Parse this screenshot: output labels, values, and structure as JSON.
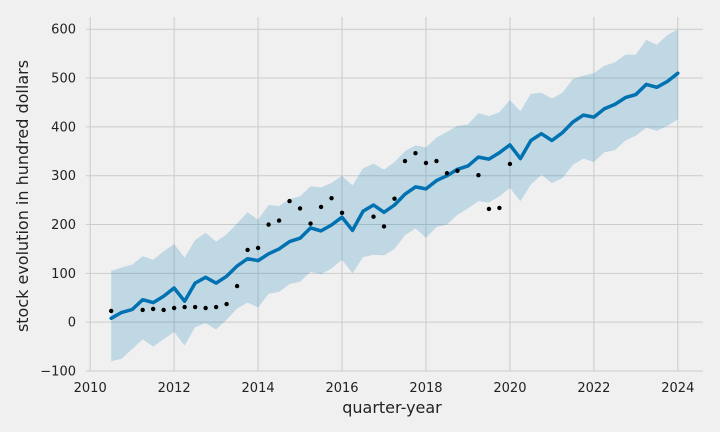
{
  "chart_data": {
    "type": "line",
    "title": "",
    "xlabel": "quarter-year",
    "ylabel": "stock evolution in hundred dollars",
    "xlim": [
      2009.9,
      2024.6
    ],
    "ylim": [
      -100,
      625
    ],
    "grid": true,
    "legend": "none",
    "x_ticks": [
      2010,
      2012,
      2014,
      2016,
      2018,
      2020,
      2022,
      2024
    ],
    "x_tick_labels": [
      "2010",
      "2012",
      "2014",
      "2016",
      "2018",
      "2020",
      "2022",
      "2024"
    ],
    "y_ticks": [
      -100,
      0,
      100,
      200,
      300,
      400,
      500,
      600
    ],
    "y_tick_labels": [
      "−100",
      "0",
      "100",
      "200",
      "300",
      "400",
      "500",
      "600"
    ],
    "colors": {
      "background": "#f0f0f0",
      "grid": "#cbcbcb",
      "forecast_line": "#0072b2",
      "band_fill": "#0072b2",
      "band_opacity": 0.2,
      "observed_points": "#000000"
    },
    "series": [
      {
        "role": "forecast",
        "x": [
          2010.5,
          2010.75,
          2011.0,
          2011.25,
          2011.5,
          2011.75,
          2012.0,
          2012.25,
          2012.5,
          2012.75,
          2013.0,
          2013.25,
          2013.5,
          2013.75,
          2014.0,
          2014.25,
          2014.5,
          2014.75,
          2015.0,
          2015.25,
          2015.5,
          2015.75,
          2016.0,
          2016.25,
          2016.5,
          2016.75,
          2017.0,
          2017.25,
          2017.5,
          2017.75,
          2018.0,
          2018.25,
          2018.5,
          2018.75,
          2019.0,
          2019.25,
          2019.5,
          2019.75,
          2020.0,
          2020.25,
          2020.5,
          2020.75,
          2021.0,
          2021.25,
          2021.5,
          2021.75,
          2022.0,
          2022.25,
          2022.5,
          2022.75,
          2023.0,
          2023.25,
          2023.5,
          2023.75,
          2024.0
        ],
        "y": [
          8,
          20,
          26,
          46,
          40,
          53,
          70,
          43,
          80,
          92,
          80,
          94,
          115,
          130,
          126,
          140,
          150,
          165,
          172,
          193,
          187,
          199,
          215,
          188,
          227,
          240,
          225,
          240,
          262,
          277,
          273,
          290,
          300,
          313,
          320,
          338,
          334,
          347,
          363,
          335,
          372,
          386,
          372,
          388,
          410,
          424,
          420,
          437,
          446,
          460,
          466,
          487,
          481,
          493,
          510
        ]
      },
      {
        "role": "uncertainty-upper",
        "x": [
          2010.5,
          2010.75,
          2011.0,
          2011.25,
          2011.5,
          2011.75,
          2012.0,
          2012.25,
          2012.5,
          2012.75,
          2013.0,
          2013.25,
          2013.5,
          2013.75,
          2014.0,
          2014.25,
          2014.5,
          2014.75,
          2015.0,
          2015.25,
          2015.5,
          2015.75,
          2016.0,
          2016.25,
          2016.5,
          2016.75,
          2017.0,
          2017.25,
          2017.5,
          2017.75,
          2018.0,
          2018.25,
          2018.5,
          2018.75,
          2019.0,
          2019.25,
          2019.5,
          2019.75,
          2020.0,
          2020.25,
          2020.5,
          2020.75,
          2021.0,
          2021.25,
          2021.5,
          2021.75,
          2022.0,
          2022.25,
          2022.5,
          2022.75,
          2023.0,
          2023.25,
          2023.5,
          2023.75,
          2024.0
        ],
        "y": [
          105,
          112,
          118,
          135,
          128,
          145,
          160,
          132,
          168,
          183,
          165,
          180,
          202,
          225,
          210,
          240,
          238,
          252,
          258,
          278,
          276,
          285,
          300,
          280,
          315,
          325,
          312,
          328,
          350,
          362,
          358,
          378,
          390,
          402,
          405,
          428,
          422,
          430,
          455,
          432,
          468,
          470,
          458,
          470,
          498,
          505,
          510,
          525,
          532,
          548,
          548,
          578,
          568,
          588,
          600
        ]
      },
      {
        "role": "uncertainty-lower",
        "x": [
          2010.5,
          2010.75,
          2011.0,
          2011.25,
          2011.5,
          2011.75,
          2012.0,
          2012.25,
          2012.5,
          2012.75,
          2013.0,
          2013.25,
          2013.5,
          2013.75,
          2014.0,
          2014.25,
          2014.5,
          2014.75,
          2015.0,
          2015.25,
          2015.5,
          2015.75,
          2016.0,
          2016.25,
          2016.5,
          2016.75,
          2017.0,
          2017.25,
          2017.5,
          2017.75,
          2018.0,
          2018.25,
          2018.5,
          2018.75,
          2019.0,
          2019.25,
          2019.5,
          2019.75,
          2020.0,
          2020.25,
          2020.5,
          2020.75,
          2021.0,
          2021.25,
          2021.5,
          2021.75,
          2022.0,
          2022.25,
          2022.5,
          2022.75,
          2023.0,
          2023.25,
          2023.5,
          2023.75,
          2024.0
        ],
        "y": [
          -80,
          -75,
          -55,
          -35,
          -50,
          -35,
          -20,
          -48,
          -10,
          -2,
          -15,
          5,
          28,
          40,
          30,
          58,
          62,
          78,
          83,
          103,
          98,
          110,
          128,
          100,
          133,
          138,
          137,
          150,
          178,
          192,
          173,
          195,
          200,
          220,
          233,
          248,
          245,
          258,
          275,
          248,
          282,
          302,
          285,
          295,
          322,
          335,
          328,
          348,
          352,
          372,
          382,
          398,
          392,
          402,
          415
        ]
      },
      {
        "role": "observed",
        "x": [
          2010.5,
          2011.25,
          2011.5,
          2011.75,
          2012.0,
          2012.25,
          2012.5,
          2012.75,
          2013.0,
          2013.25,
          2013.5,
          2013.75,
          2014.0,
          2014.25,
          2014.5,
          2014.75,
          2015.0,
          2015.25,
          2015.5,
          2015.75,
          2016.0,
          2016.75,
          2017.0,
          2017.25,
          2017.5,
          2017.75,
          2018.0,
          2018.25,
          2018.5,
          2018.75,
          2019.25,
          2019.5,
          2019.75,
          2020.0
        ],
        "y": [
          23,
          25,
          27,
          25,
          29,
          31,
          31,
          29,
          31,
          37,
          74,
          148,
          152,
          200,
          208,
          248,
          233,
          202,
          236,
          254,
          224,
          216,
          196,
          253,
          330,
          346,
          326,
          330,
          305,
          310,
          301,
          232,
          234,
          324
        ]
      }
    ]
  }
}
